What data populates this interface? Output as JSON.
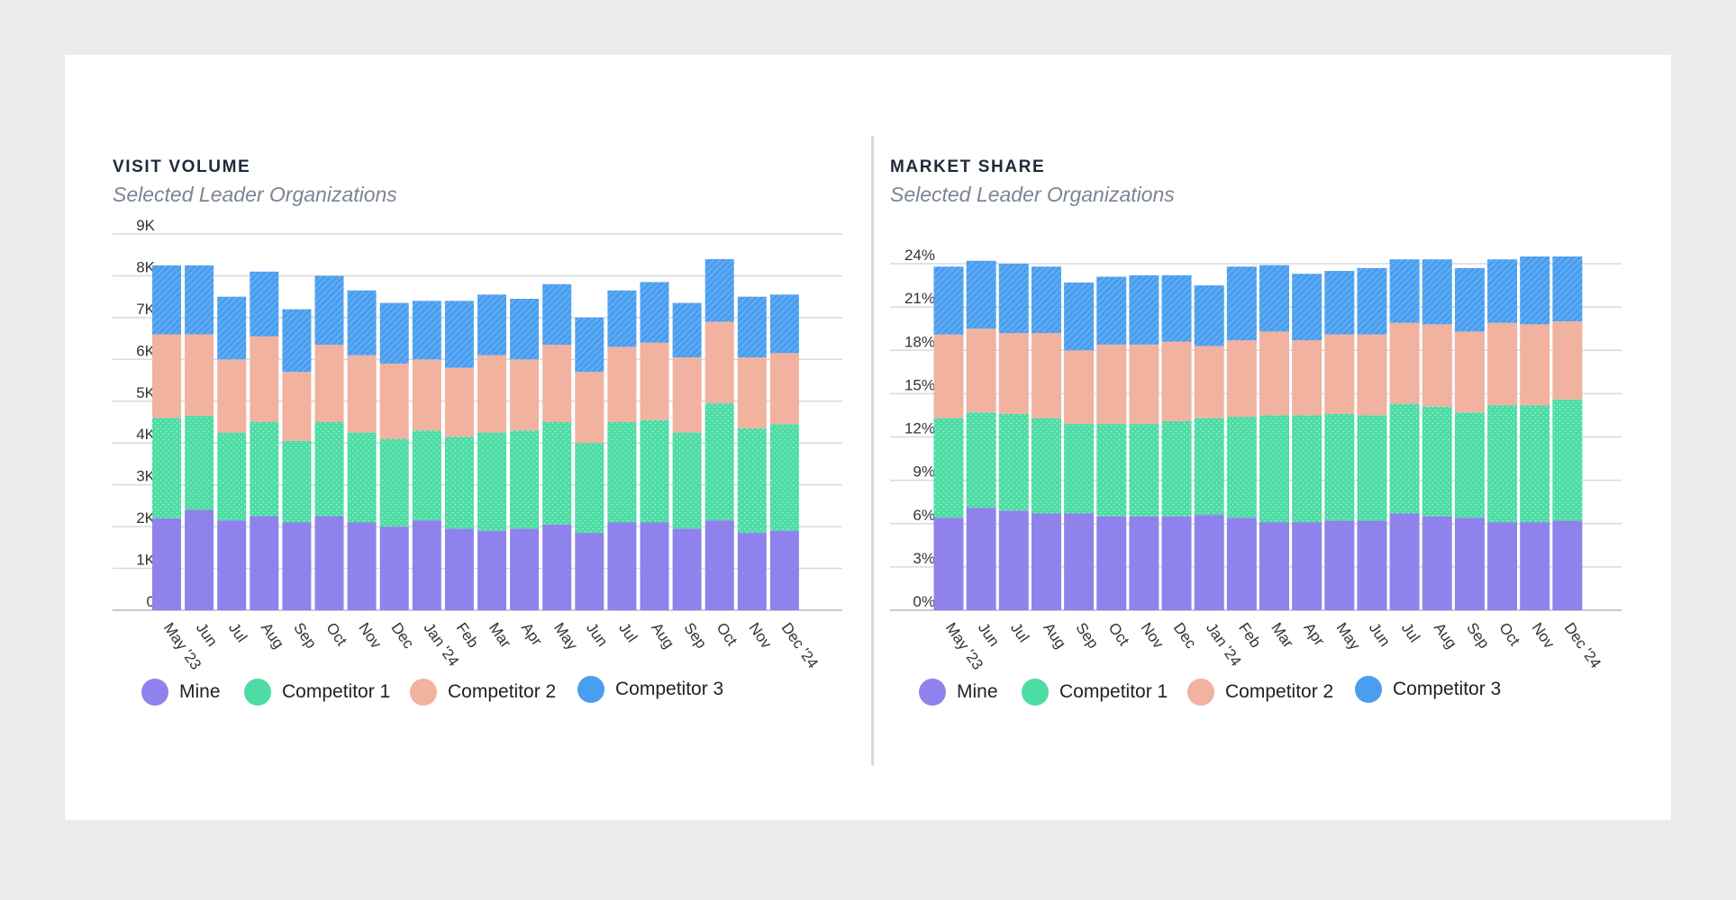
{
  "series_colors": {
    "Mine": "#8f82ec",
    "Competitor 1": "#4cdca4",
    "Competitor 2": "#f1b2a0",
    "Competitor 3": "#4a9ef0"
  },
  "legend": [
    "Mine",
    "Competitor 1",
    "Competitor 2",
    "Competitor 3"
  ],
  "chart_data": [
    {
      "type": "bar",
      "stacked": true,
      "title": "VISIT VOLUME",
      "subtitle": "Selected Leader Organizations",
      "xlabel": "",
      "ylabel": "",
      "ylim": [
        0,
        9000
      ],
      "yticks": [
        0,
        1000,
        2000,
        3000,
        4000,
        5000,
        6000,
        7000,
        8000,
        9000
      ],
      "ytick_labels": [
        "0",
        "1K",
        "2K",
        "3K",
        "4K",
        "5K",
        "6K",
        "7K",
        "8K",
        "9K"
      ],
      "categories": [
        "May '23",
        "Jun",
        "Jul",
        "Aug",
        "Sep",
        "Oct",
        "Nov",
        "Dec",
        "Jan '24",
        "Feb",
        "Mar",
        "Apr",
        "May",
        "Jun",
        "Jul",
        "Aug",
        "Sep",
        "Oct",
        "Nov",
        "Dec '24"
      ],
      "series": [
        {
          "name": "Mine",
          "values": [
            2200,
            2400,
            2150,
            2250,
            2100,
            2250,
            2100,
            2000,
            2150,
            1950,
            1900,
            1950,
            2050,
            1850,
            2100,
            2100,
            1950,
            2150,
            1850,
            1900
          ]
        },
        {
          "name": "Competitor 1",
          "values": [
            2400,
            2250,
            2100,
            2250,
            1950,
            2250,
            2150,
            2100,
            2150,
            2200,
            2350,
            2350,
            2450,
            2150,
            2400,
            2450,
            2300,
            2800,
            2500,
            2550
          ]
        },
        {
          "name": "Competitor 2",
          "values": [
            2000,
            1950,
            1750,
            2050,
            1650,
            1850,
            1850,
            1800,
            1700,
            1650,
            1850,
            1700,
            1850,
            1700,
            1800,
            1850,
            1800,
            1950,
            1700,
            1700
          ]
        },
        {
          "name": "Competitor 3",
          "values": [
            1650,
            1650,
            1500,
            1550,
            1500,
            1650,
            1550,
            1450,
            1400,
            1600,
            1450,
            1450,
            1450,
            1300,
            1350,
            1450,
            1300,
            1500,
            1450,
            1400
          ]
        }
      ]
    },
    {
      "type": "bar",
      "stacked": true,
      "title": "MARKET SHARE",
      "subtitle": "Selected Leader Organizations",
      "xlabel": "",
      "ylabel": "",
      "ylim": [
        0,
        24
      ],
      "yticks": [
        0,
        3,
        6,
        9,
        12,
        15,
        18,
        21,
        24
      ],
      "ytick_labels": [
        "0%",
        "3%",
        "6%",
        "9%",
        "12%",
        "15%",
        "18%",
        "21%",
        "24%"
      ],
      "categories": [
        "May '23",
        "Jun",
        "Jul",
        "Aug",
        "Sep",
        "Oct",
        "Nov",
        "Dec",
        "Jan '24",
        "Feb",
        "Mar",
        "Apr",
        "May",
        "Jun",
        "Jul",
        "Aug",
        "Sep",
        "Oct",
        "Nov",
        "Dec '24"
      ],
      "series": [
        {
          "name": "Mine",
          "values": [
            6.4,
            7.1,
            6.9,
            6.7,
            6.7,
            6.5,
            6.5,
            6.5,
            6.6,
            6.4,
            6.1,
            6.1,
            6.2,
            6.2,
            6.7,
            6.5,
            6.4,
            6.1,
            6.1,
            6.2
          ]
        },
        {
          "name": "Competitor 1",
          "values": [
            6.9,
            6.6,
            6.7,
            6.6,
            6.2,
            6.4,
            6.4,
            6.6,
            6.7,
            7.0,
            7.4,
            7.4,
            7.4,
            7.3,
            7.6,
            7.6,
            7.3,
            8.1,
            8.1,
            8.4
          ]
        },
        {
          "name": "Competitor 2",
          "values": [
            5.8,
            5.8,
            5.6,
            5.9,
            5.1,
            5.5,
            5.5,
            5.5,
            5.0,
            5.3,
            5.8,
            5.2,
            5.5,
            5.6,
            5.6,
            5.7,
            5.6,
            5.7,
            5.6,
            5.4
          ]
        },
        {
          "name": "Competitor 3",
          "values": [
            4.7,
            4.7,
            4.8,
            4.6,
            4.7,
            4.7,
            4.8,
            4.6,
            4.2,
            5.1,
            4.6,
            4.6,
            4.4,
            4.6,
            4.4,
            4.5,
            4.4,
            4.4,
            4.7,
            4.5
          ]
        }
      ]
    }
  ]
}
